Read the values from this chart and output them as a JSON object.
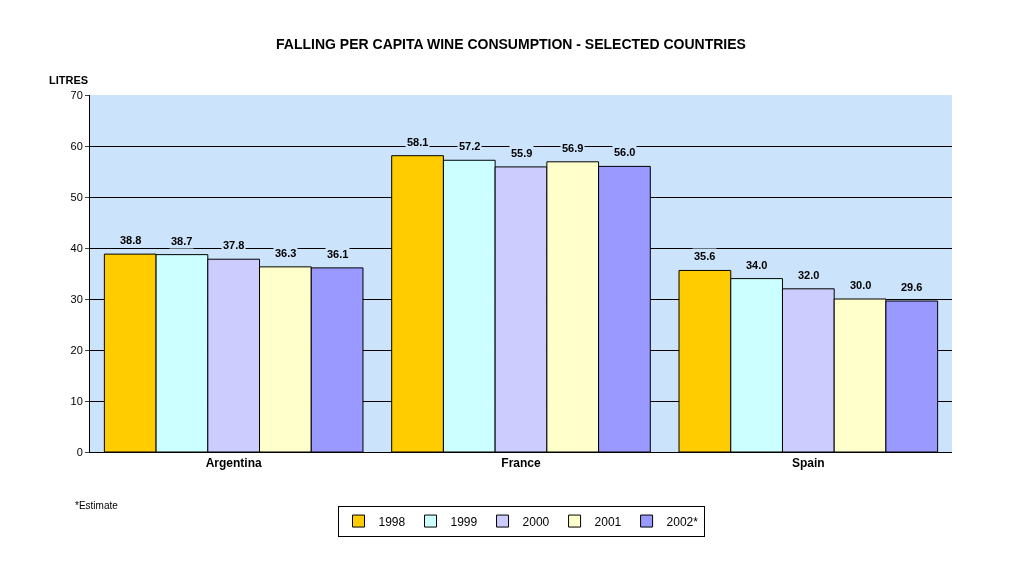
{
  "chart_data": {
    "type": "bar",
    "title": "FALLING PER CAPITA WINE CONSUMPTION - SELECTED COUNTRIES",
    "ylabel": "LITRES",
    "categories": [
      "Argentina",
      "France",
      "Spain"
    ],
    "series": [
      {
        "name": "1998",
        "color": "#ffcc00",
        "values": [
          38.8,
          58.1,
          35.6
        ],
        "value_labels": [
          "38.8",
          "58.1",
          "35.6"
        ]
      },
      {
        "name": "1999",
        "color": "#ccffff",
        "values": [
          38.7,
          57.2,
          34.0
        ],
        "value_labels": [
          "38.7",
          "57.2",
          "34.0"
        ]
      },
      {
        "name": "2000",
        "color": "#ccccff",
        "values": [
          37.8,
          55.9,
          32.0
        ],
        "value_labels": [
          "37.8",
          "55.9",
          "32.0"
        ]
      },
      {
        "name": "2001",
        "color": "#ffffcc",
        "values": [
          36.3,
          56.9,
          30.0
        ],
        "value_labels": [
          "36.3",
          "56.9",
          "30.0"
        ]
      },
      {
        "name": "2002*",
        "color": "#9999ff",
        "values": [
          36.1,
          56.0,
          29.6
        ],
        "value_labels": [
          "36.1",
          "56.0",
          "29.6"
        ]
      }
    ],
    "ylim": [
      0,
      70
    ],
    "yticks": [
      0,
      10,
      20,
      30,
      40,
      50,
      60,
      70
    ],
    "grid": "y",
    "legend": "bottom",
    "annotations": [
      "*Estimate"
    ]
  }
}
